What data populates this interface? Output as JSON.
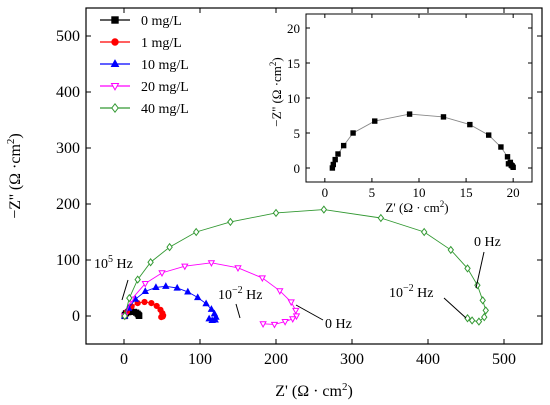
{
  "chart_data": [
    {
      "type": "line",
      "xlabel": "Z' (Ω · cm²)",
      "ylabel": "−Z'' (Ω ·cm²)",
      "xlim": [
        -50,
        550
      ],
      "ylim": [
        -50,
        550
      ],
      "xticks": [
        0,
        100,
        200,
        300,
        400,
        500
      ],
      "yticks": [
        0,
        100,
        200,
        300,
        400,
        500
      ],
      "legend_position": "top-left",
      "series": [
        {
          "name": "0 mg/L",
          "color": "#000000",
          "marker": "square",
          "filled": true,
          "x": [
            0.8,
            1.2,
            2.6,
            5.5,
            9.3,
            13.2,
            16.0,
            18.0,
            19.2,
            19.8,
            20.0,
            19.5
          ],
          "y": [
            0.0,
            2.0,
            4.8,
            6.8,
            7.7,
            7.3,
            6.0,
            4.0,
            2.0,
            0.8,
            0.2,
            0.5
          ]
        },
        {
          "name": "1 mg/L",
          "color": "#ff0000",
          "marker": "circle",
          "filled": true,
          "x": [
            1,
            4,
            10,
            18,
            27,
            36,
            43,
            48,
            50.5,
            51.5,
            51,
            49
          ],
          "y": [
            0,
            8,
            17,
            23,
            25,
            23,
            18,
            11,
            5,
            1,
            -1,
            -2
          ]
        },
        {
          "name": "10 mg/L",
          "color": "#0000ff",
          "marker": "triangle",
          "filled": true,
          "x": [
            1,
            6,
            15,
            28,
            42,
            55,
            70,
            84,
            97,
            108,
            115,
            119,
            121,
            120,
            116,
            112
          ],
          "y": [
            0,
            14,
            30,
            44,
            51,
            53,
            50,
            43,
            33,
            22,
            12,
            4,
            -2,
            -7,
            -8,
            -5
          ]
        },
        {
          "name": "20 mg/L",
          "color": "#ff00ff",
          "marker": "triangle-down",
          "filled": false,
          "x": [
            1,
            10,
            28,
            50,
            80,
            115,
            150,
            182,
            205,
            220,
            226,
            227,
            222,
            212,
            198,
            183
          ],
          "y": [
            0,
            30,
            58,
            77,
            89,
            95,
            86,
            68,
            45,
            25,
            10,
            0,
            -5,
            -10,
            -15,
            -14
          ]
        },
        {
          "name": "40 mg/L",
          "color": "#339933",
          "marker": "diamond",
          "filled": false,
          "x": [
            1,
            7,
            18,
            35,
            60,
            95,
            140,
            200,
            263,
            338,
            395,
            430,
            452,
            465,
            472,
            476,
            474,
            467,
            458,
            452
          ],
          "y": [
            0,
            32,
            65,
            96,
            123,
            150,
            168,
            184,
            190,
            175,
            150,
            118,
            85,
            55,
            28,
            10,
            -2,
            -10,
            -8,
            -4
          ]
        }
      ],
      "annotations": [
        "10⁵ Hz",
        "10⁻² Hz",
        "0 Hz",
        "10⁻² Hz",
        "0 Hz"
      ]
    },
    {
      "type": "line",
      "xlabel": "Z' (Ω · cm²)",
      "ylabel": "−Z'' (Ω ·cm²)",
      "xlim": [
        -2,
        22
      ],
      "ylim": [
        -2,
        22
      ],
      "xticks": [
        0,
        5,
        10,
        15,
        20
      ],
      "yticks": [
        0,
        5,
        10,
        15,
        20
      ],
      "series": [
        {
          "name": "0 mg/L",
          "color": "#000000",
          "marker": "square",
          "filled": true,
          "x": [
            0.8,
            0.9,
            1.1,
            1.4,
            2.0,
            3.0,
            5.3,
            9.0,
            12.6,
            15.4,
            17.4,
            18.7,
            19.4,
            19.7,
            19.9,
            20.0,
            19.8,
            19.5
          ],
          "y": [
            0.0,
            0.5,
            1.2,
            2.0,
            3.2,
            5.0,
            6.7,
            7.7,
            7.3,
            6.2,
            4.7,
            3.0,
            1.6,
            0.8,
            0.3,
            0.1,
            0.4,
            0.6
          ]
        }
      ]
    }
  ],
  "legend": [
    {
      "label": "0 mg/L",
      "color": "#000000",
      "marker": "square",
      "filled": true
    },
    {
      "label": "1 mg/L",
      "color": "#ff0000",
      "marker": "circle",
      "filled": true
    },
    {
      "label": "10 mg/L",
      "color": "#0000ff",
      "marker": "triangle",
      "filled": true
    },
    {
      "label": "20 mg/L",
      "color": "#ff00ff",
      "marker": "triangle-down",
      "filled": false
    },
    {
      "label": "40 mg/L",
      "color": "#339933",
      "marker": "diamond",
      "filled": false
    }
  ],
  "annotations": {
    "hf_label": {
      "base": "10",
      "exp": "5",
      "unit": " Hz"
    },
    "lf_label_pink": {
      "base": "10",
      "exp": "−2",
      "unit": " Hz"
    },
    "zero_label_pink": "0 Hz",
    "lf_label_green": {
      "base": "10",
      "exp": "−2",
      "unit": " Hz"
    },
    "zero_label_green": "0 Hz"
  },
  "axis_text": {
    "main_x": {
      "pre": "Z' (Ω · cm",
      "sup": "2",
      "post": ")"
    },
    "main_y": {
      "pre": "−Z'' (Ω ·cm",
      "sup": "2",
      "post": ")"
    },
    "inset_x": {
      "pre": "Z' (Ω · cm",
      "sup": "2",
      "post": ")"
    },
    "inset_y": {
      "pre": "−Z'' (Ω ·cm",
      "sup": "2",
      "post": ")"
    }
  }
}
